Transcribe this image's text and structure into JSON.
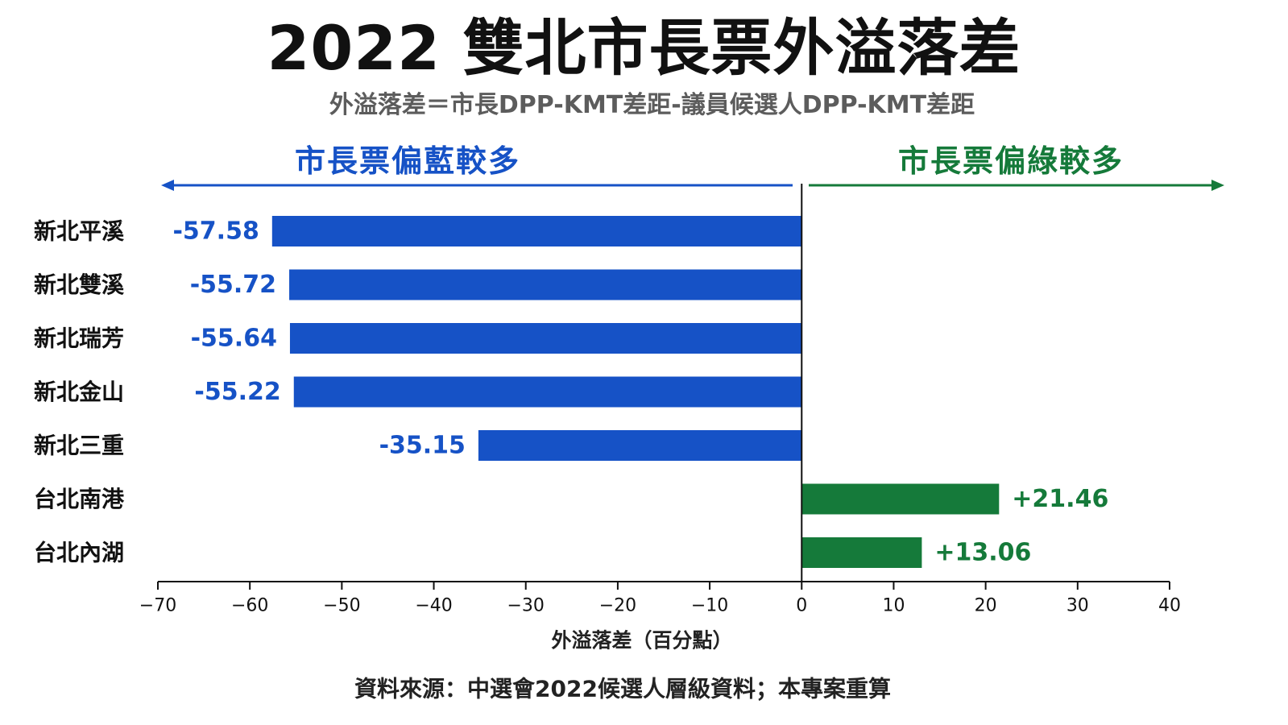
{
  "chart_data": {
    "type": "bar",
    "orientation": "horizontal",
    "title": "2022 雙北市長票外溢落差",
    "subtitle": "外溢落差＝市長DPP-KMT差距-議員候選人DPP-KMT差距",
    "categories": [
      "新北平溪",
      "新北雙溪",
      "新北瑞芳",
      "新北金山",
      "新北三重",
      "台北南港",
      "台北內湖"
    ],
    "values": [
      -57.58,
      -55.72,
      -55.64,
      -55.22,
      -35.15,
      21.46,
      13.06
    ],
    "value_labels": [
      "-57.58",
      "-55.72",
      "-55.64",
      "-55.22",
      "-35.15",
      "+21.46",
      "+13.06"
    ],
    "xlabel": "外溢落差（百分點）",
    "xlim": [
      -70,
      40
    ],
    "xticks": [
      -70,
      -60,
      -50,
      -40,
      -30,
      -20,
      -10,
      0,
      10,
      20,
      30,
      40
    ],
    "xtick_labels": [
      "−70",
      "−60",
      "−50",
      "−40",
      "−30",
      "−20",
      "−10",
      "0",
      "10",
      "20",
      "30",
      "40"
    ],
    "grid": false,
    "legend": false,
    "direction_labels": {
      "left": "市長票偏藍較多",
      "right": "市長票偏綠較多"
    },
    "colors": {
      "negative": "#1652c6",
      "positive": "#157a3a"
    },
    "source": "資料來源：中選會2022候選人層級資料；本專案重算"
  }
}
